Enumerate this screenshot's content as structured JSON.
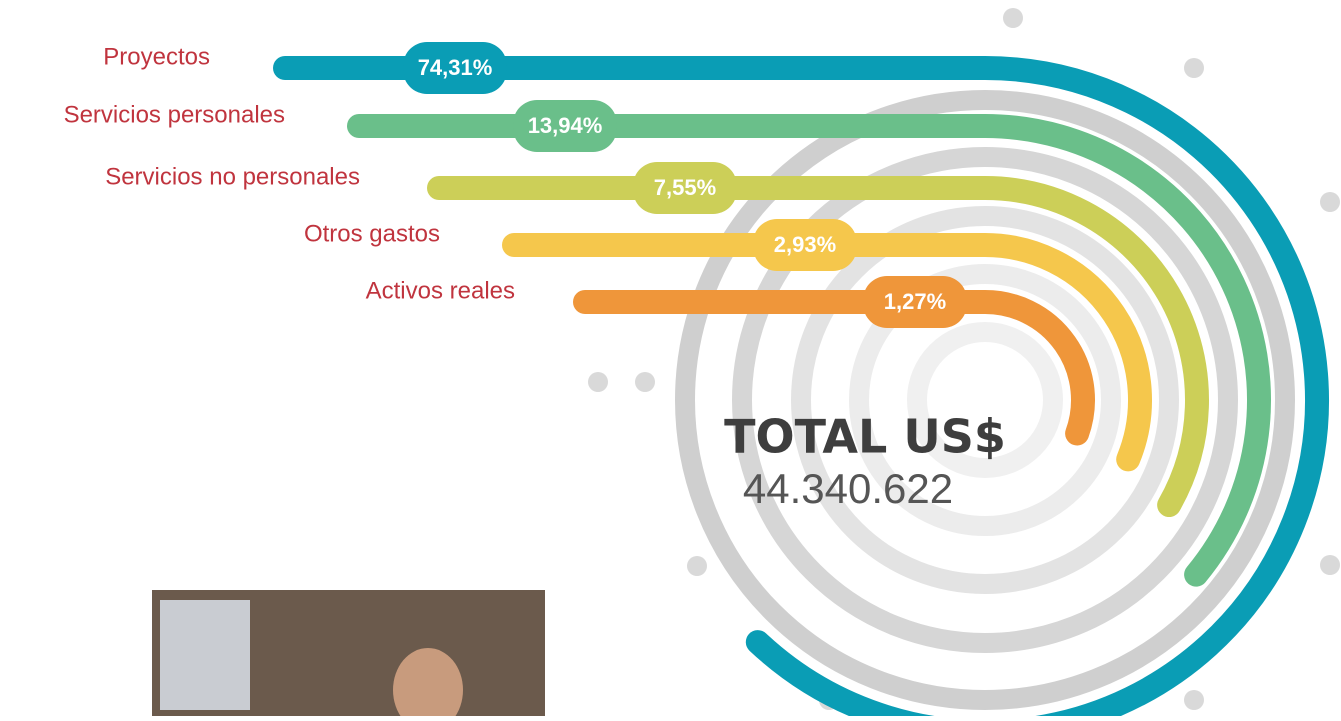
{
  "chart_data": {
    "type": "radial-bar",
    "categories": [
      "Proyectos",
      "Servicios personales",
      "Servicios no personales",
      "Otros gastos",
      "Activos reales"
    ],
    "values": [
      74.31,
      13.94,
      7.55,
      2.93,
      1.27
    ],
    "value_labels": [
      "74,31%",
      "13,94%",
      "7,55%",
      "2,93%",
      "1,27%"
    ],
    "colors": [
      "#0a9db5",
      "#6abf8a",
      "#cccf58",
      "#f5c74c",
      "#ef963a"
    ],
    "total_title": "TOTAL US$",
    "total": {
      "value": 44340622,
      "label": "44.340.622"
    }
  }
}
